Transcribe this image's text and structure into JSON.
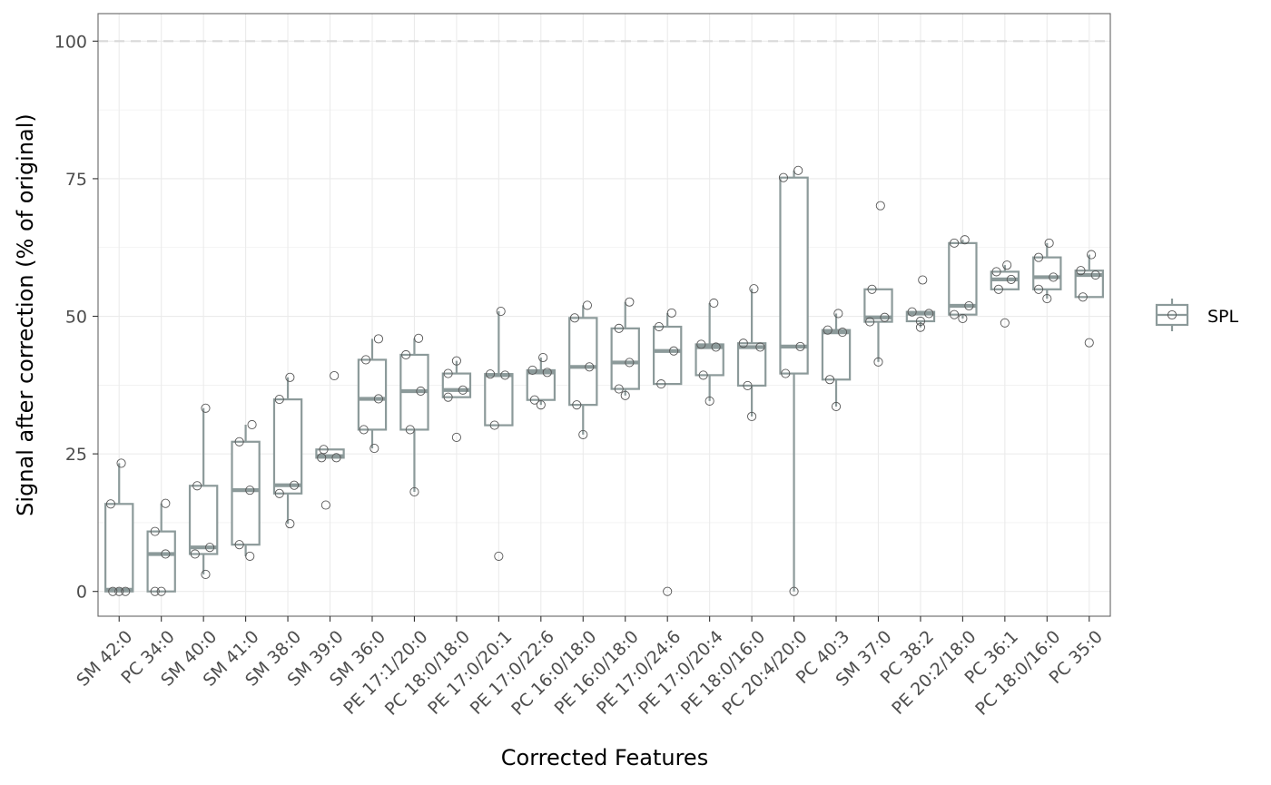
{
  "chart_data": {
    "type": "box",
    "xlabel": "Corrected Features",
    "ylabel": "Signal after correction (% of original)",
    "ylim": [
      -4.5,
      105
    ],
    "yticks": [
      0,
      25,
      50,
      75,
      100
    ],
    "reference_line": 100,
    "grid": true,
    "legend": {
      "position": "right",
      "entries": [
        "SPL"
      ]
    },
    "colors": {
      "box": "#8c9a9a",
      "point": "#555555",
      "reference": "#d9d9d9",
      "grid": "#ebebeb",
      "border": "#666666"
    },
    "categories": [
      "SM 42:0",
      "PC 34:0",
      "SM 40:0",
      "SM 41:0",
      "SM 38:0",
      "SM 39:0",
      "SM 36:0",
      "PE 17:1/20:0",
      "PC 18:0/18:0",
      "PE 17:0/20:1",
      "PE 17:0/22:6",
      "PC 16:0/18:0",
      "PE 16:0/18:0",
      "PE 17:0/24:6",
      "PE 17:0/20:4",
      "PE 18:0/16:0",
      "PC 20:4/20:0",
      "PC 40:3",
      "SM 37:0",
      "PC 38:2",
      "PE 20:2/18:0",
      "PC 36:1",
      "PC 18:0/16:0",
      "PC 35:0"
    ],
    "series": [
      {
        "name": "SPL",
        "boxes": [
          {
            "min": 0,
            "q1": 0,
            "median": 0.3,
            "q3": 15.9,
            "max": 23.3
          },
          {
            "min": 0,
            "q1": 0,
            "median": 6.8,
            "q3": 10.9,
            "max": 16.0
          },
          {
            "min": 3.1,
            "q1": 6.8,
            "median": 8.0,
            "q3": 19.2,
            "max": 33.3
          },
          {
            "min": 6.4,
            "q1": 8.5,
            "median": 18.4,
            "q3": 27.2,
            "max": 30.3
          },
          {
            "min": 12.3,
            "q1": 17.8,
            "median": 19.3,
            "q3": 34.9,
            "max": 38.9
          },
          {
            "min": 24.3,
            "q1": 24.3,
            "median": 24.6,
            "q3": 25.8,
            "max": 25.8
          },
          {
            "min": 26.0,
            "q1": 29.4,
            "median": 35.0,
            "q3": 42.1,
            "max": 45.9
          },
          {
            "min": 18.1,
            "q1": 29.4,
            "median": 36.4,
            "q3": 43.0,
            "max": 46.0
          },
          {
            "min": 35.3,
            "q1": 35.3,
            "median": 36.6,
            "q3": 39.6,
            "max": 41.9
          },
          {
            "min": 30.2,
            "q1": 30.2,
            "median": 39.3,
            "q3": 39.5,
            "max": 50.9
          },
          {
            "min": 33.9,
            "q1": 34.8,
            "median": 39.8,
            "q3": 40.2,
            "max": 42.5
          },
          {
            "min": 28.5,
            "q1": 33.9,
            "median": 40.8,
            "q3": 49.7,
            "max": 52.0
          },
          {
            "min": 35.6,
            "q1": 36.8,
            "median": 41.6,
            "q3": 47.8,
            "max": 52.6
          },
          {
            "min": 37.7,
            "q1": 37.7,
            "median": 43.7,
            "q3": 48.1,
            "max": 50.6
          },
          {
            "min": 34.6,
            "q1": 39.3,
            "median": 44.4,
            "q3": 44.9,
            "max": 52.4
          },
          {
            "min": 31.8,
            "q1": 37.4,
            "median": 44.4,
            "q3": 45.1,
            "max": 55.0
          },
          {
            "min": 0,
            "q1": 39.6,
            "median": 44.5,
            "q3": 75.2,
            "max": 76.5
          },
          {
            "min": 33.6,
            "q1": 38.5,
            "median": 47.1,
            "q3": 47.5,
            "max": 50.5
          },
          {
            "min": 41.7,
            "q1": 49.0,
            "median": 49.8,
            "q3": 54.9,
            "max": 54.9
          },
          {
            "min": 48.0,
            "q1": 49.1,
            "median": 50.5,
            "q3": 50.8,
            "max": 50.8
          },
          {
            "min": 49.6,
            "q1": 50.3,
            "median": 51.9,
            "q3": 63.3,
            "max": 63.9
          },
          {
            "min": 54.9,
            "q1": 54.9,
            "median": 56.7,
            "q3": 58.1,
            "max": 59.3
          },
          {
            "min": 53.2,
            "q1": 54.9,
            "median": 57.1,
            "q3": 60.7,
            "max": 63.3
          },
          {
            "min": 53.5,
            "q1": 53.5,
            "median": 57.5,
            "q3": 58.3,
            "max": 61.2
          }
        ],
        "points": [
          [
            [
              -0.2,
              15.9
            ],
            [
              -0.15,
              0
            ],
            [
              0,
              0
            ],
            [
              0.15,
              0
            ],
            [
              0.05,
              23.3
            ]
          ],
          [
            [
              -0.15,
              10.9
            ],
            [
              -0.15,
              0
            ],
            [
              0,
              0
            ],
            [
              0.1,
              16.0
            ],
            [
              0.1,
              6.8
            ]
          ],
          [
            [
              -0.15,
              19.2
            ],
            [
              -0.2,
              6.8
            ],
            [
              0.15,
              8.0
            ],
            [
              0.05,
              3.1
            ],
            [
              0.05,
              33.3
            ]
          ],
          [
            [
              -0.15,
              27.2
            ],
            [
              -0.15,
              8.5
            ],
            [
              0.1,
              18.4
            ],
            [
              0.15,
              30.3
            ],
            [
              0.1,
              6.4
            ]
          ],
          [
            [
              -0.2,
              34.9
            ],
            [
              -0.2,
              17.8
            ],
            [
              0.15,
              19.3
            ],
            [
              0.05,
              12.3
            ],
            [
              0.05,
              38.9
            ]
          ],
          [
            [
              -0.2,
              24.3
            ],
            [
              -0.15,
              25.8
            ],
            [
              0.15,
              24.3
            ],
            [
              -0.1,
              15.7
            ],
            [
              0.1,
              39.2
            ]
          ],
          [
            [
              -0.15,
              42.1
            ],
            [
              -0.2,
              29.4
            ],
            [
              0.15,
              35.0
            ],
            [
              0.15,
              45.9
            ],
            [
              0.05,
              26.0
            ]
          ],
          [
            [
              -0.2,
              43.0
            ],
            [
              -0.1,
              29.4
            ],
            [
              0.15,
              36.4
            ],
            [
              0.1,
              46.0
            ],
            [
              0,
              18.1
            ]
          ],
          [
            [
              -0.2,
              39.6
            ],
            [
              -0.2,
              35.3
            ],
            [
              0.15,
              36.6
            ],
            [
              0,
              41.9
            ],
            [
              0,
              28.0
            ]
          ],
          [
            [
              -0.2,
              39.5
            ],
            [
              -0.1,
              30.2
            ],
            [
              0.15,
              39.3
            ],
            [
              0.05,
              50.9
            ],
            [
              0,
              6.4
            ]
          ],
          [
            [
              -0.2,
              40.2
            ],
            [
              -0.15,
              34.8
            ],
            [
              0.15,
              39.8
            ],
            [
              0.05,
              42.5
            ],
            [
              0,
              33.9
            ]
          ],
          [
            [
              -0.2,
              49.7
            ],
            [
              -0.15,
              33.9
            ],
            [
              0.15,
              40.8
            ],
            [
              0.1,
              52.0
            ],
            [
              0,
              28.5
            ]
          ],
          [
            [
              -0.15,
              47.8
            ],
            [
              -0.15,
              36.8
            ],
            [
              0.1,
              41.6
            ],
            [
              0.1,
              52.6
            ],
            [
              0,
              35.6
            ]
          ],
          [
            [
              -0.2,
              48.1
            ],
            [
              -0.15,
              37.7
            ],
            [
              0.15,
              43.7
            ],
            [
              0.1,
              50.6
            ],
            [
              0,
              0
            ]
          ],
          [
            [
              -0.2,
              44.9
            ],
            [
              -0.15,
              39.3
            ],
            [
              0.15,
              44.4
            ],
            [
              0.1,
              52.4
            ],
            [
              0,
              34.6
            ]
          ],
          [
            [
              -0.2,
              45.1
            ],
            [
              -0.1,
              37.4
            ],
            [
              0.2,
              44.4
            ],
            [
              0.05,
              55.0
            ],
            [
              0,
              31.8
            ]
          ],
          [
            [
              -0.25,
              75.2
            ],
            [
              -0.2,
              39.6
            ],
            [
              0.15,
              44.5
            ],
            [
              0.1,
              76.5
            ],
            [
              0,
              0
            ]
          ],
          [
            [
              -0.2,
              47.5
            ],
            [
              -0.15,
              38.5
            ],
            [
              0.15,
              47.1
            ],
            [
              0.05,
              50.5
            ],
            [
              0,
              33.6
            ]
          ],
          [
            [
              -0.2,
              49.0
            ],
            [
              -0.15,
              54.9
            ],
            [
              0.15,
              49.8
            ],
            [
              0.05,
              70.1
            ],
            [
              0,
              41.7
            ]
          ],
          [
            [
              -0.2,
              50.8
            ],
            [
              0,
              49.1
            ],
            [
              0.2,
              50.5
            ],
            [
              0.05,
              56.6
            ],
            [
              0,
              48.0
            ]
          ],
          [
            [
              -0.2,
              63.3
            ],
            [
              -0.2,
              50.3
            ],
            [
              0.15,
              51.9
            ],
            [
              0.05,
              63.9
            ],
            [
              0,
              49.6
            ]
          ],
          [
            [
              -0.2,
              58.1
            ],
            [
              -0.15,
              54.9
            ],
            [
              0.15,
              56.7
            ],
            [
              0.05,
              59.3
            ],
            [
              0,
              48.8
            ]
          ],
          [
            [
              -0.2,
              60.7
            ],
            [
              -0.2,
              54.9
            ],
            [
              0.15,
              57.1
            ],
            [
              0.05,
              63.3
            ],
            [
              0,
              53.2
            ]
          ],
          [
            [
              -0.2,
              58.3
            ],
            [
              -0.15,
              53.5
            ],
            [
              0.15,
              57.5
            ],
            [
              0.05,
              61.2
            ],
            [
              0,
              45.2
            ]
          ]
        ]
      }
    ]
  }
}
